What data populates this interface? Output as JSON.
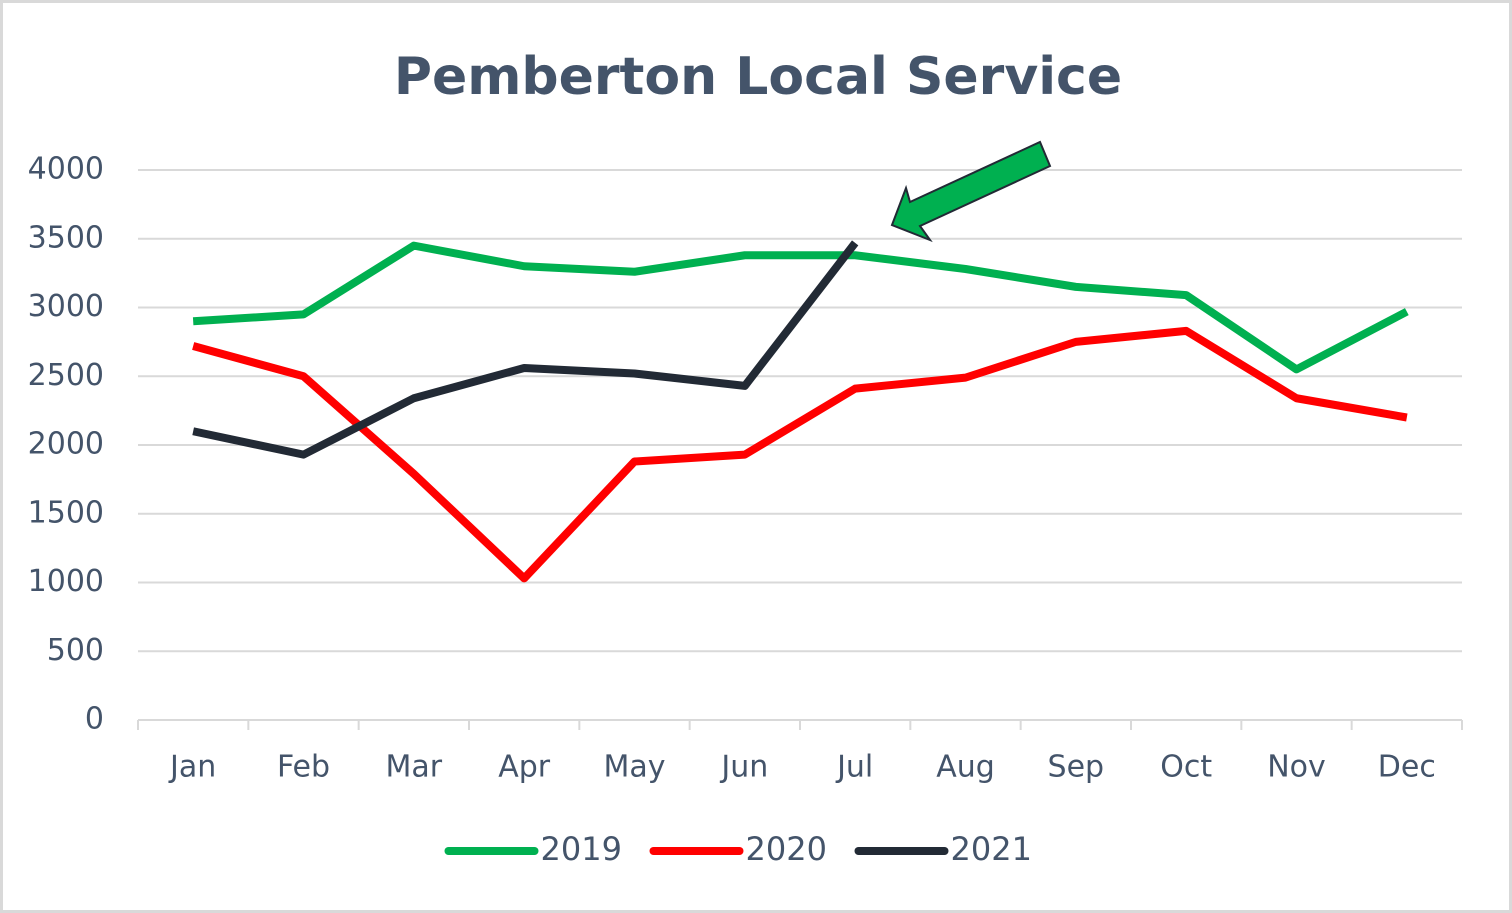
{
  "chart_data": {
    "type": "line",
    "title": "Pemberton Local Service",
    "categories": [
      "Jan",
      "Feb",
      "Mar",
      "Apr",
      "May",
      "Jun",
      "Jul",
      "Aug",
      "Sep",
      "Oct",
      "Nov",
      "Dec"
    ],
    "series": [
      {
        "name": "2019",
        "color": "#00b050",
        "values": [
          2900,
          2950,
          3450,
          3300,
          3260,
          3380,
          3380,
          3280,
          3150,
          3090,
          2550,
          2970
        ]
      },
      {
        "name": "2020",
        "color": "#ff0000",
        "values": [
          2720,
          2500,
          1790,
          1030,
          1880,
          1930,
          2410,
          2490,
          2750,
          2830,
          2340,
          2200
        ]
      },
      {
        "name": "2021",
        "color": "#222a35",
        "values": [
          2100,
          1930,
          2340,
          2560,
          2520,
          2430,
          3470,
          null,
          null,
          null,
          null,
          null
        ]
      }
    ],
    "ylim": [
      0,
      4000
    ],
    "yticks": [
      0,
      500,
      1000,
      1500,
      2000,
      2500,
      3000,
      3500,
      4000
    ],
    "grid": true,
    "legend": "bottom"
  }
}
